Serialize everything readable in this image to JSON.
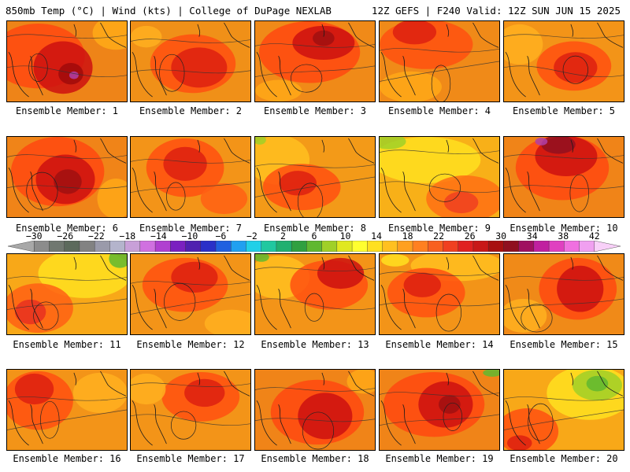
{
  "header": {
    "left": "850mb Temp (°C) | Wind (kts) | College of DuPage NEXLAB",
    "right": "12Z GEFS | F240 Valid: 12Z SUN JUN 15 2025"
  },
  "colorbar": {
    "labels": [
      "-30",
      "-26",
      "-22",
      "-18",
      "-14",
      "-10",
      "-6",
      "-2",
      "2",
      "6",
      "10",
      "14",
      "18",
      "22",
      "26",
      "30",
      "34",
      "38",
      "42"
    ],
    "colors": [
      "#a8a8a8",
      "#8c8c8c",
      "#707870",
      "#5c6a5c",
      "#828282",
      "#9a9aaa",
      "#b4b4cc",
      "#c8a0d8",
      "#d070e0",
      "#b040d0",
      "#7a20c0",
      "#5020b0",
      "#2a30c8",
      "#2060e0",
      "#20a0f0",
      "#20d0e8",
      "#20c8a0",
      "#20b070",
      "#30a040",
      "#60b830",
      "#a0d028",
      "#e0e820",
      "#ffff30",
      "#ffe020",
      "#ffc020",
      "#ffa020",
      "#ff8020",
      "#f86020",
      "#f04020",
      "#e02020",
      "#c81818",
      "#a81010",
      "#901020",
      "#a01060",
      "#c020a0",
      "#e040c0",
      "#f070e0",
      "#f0a0f0",
      "#f8d0f8"
    ]
  },
  "members": [
    {
      "caption": "Ensemble Member: 1",
      "base": "#ee8418",
      "blobs": [
        {
          "c": "#ff4810",
          "x": 40,
          "y": 45,
          "rx": 60,
          "ry": 42
        },
        {
          "c": "#cc1010",
          "x": 72,
          "y": 60,
          "rx": 38,
          "ry": 34
        },
        {
          "c": "#a00a0a",
          "x": 82,
          "y": 68,
          "rx": 16,
          "ry": 14
        },
        {
          "c": "#b040a8",
          "x": 86,
          "y": 70,
          "rx": 6,
          "ry": 5
        },
        {
          "c": "#ffaa18",
          "x": 140,
          "y": 15,
          "rx": 30,
          "ry": 22
        }
      ]
    },
    {
      "caption": "Ensemble Member: 2",
      "base": "#f09018",
      "blobs": [
        {
          "c": "#ff5010",
          "x": 80,
          "y": 55,
          "rx": 55,
          "ry": 38
        },
        {
          "c": "#dd2010",
          "x": 88,
          "y": 60,
          "rx": 36,
          "ry": 26
        },
        {
          "c": "#ffb020",
          "x": 20,
          "y": 20,
          "rx": 20,
          "ry": 14
        }
      ]
    },
    {
      "caption": "Ensemble Member: 3",
      "base": "#f08a18",
      "blobs": [
        {
          "c": "#ff4810",
          "x": 70,
          "y": 40,
          "rx": 65,
          "ry": 40
        },
        {
          "c": "#cc1010",
          "x": 88,
          "y": 28,
          "rx": 40,
          "ry": 22
        },
        {
          "c": "#a01010",
          "x": 88,
          "y": 22,
          "rx": 14,
          "ry": 10
        },
        {
          "c": "#ffa818",
          "x": 30,
          "y": 90,
          "rx": 30,
          "ry": 14
        }
      ]
    },
    {
      "caption": "Ensemble Member: 4",
      "base": "#f08a18",
      "blobs": [
        {
          "c": "#ff5010",
          "x": 60,
          "y": 30,
          "rx": 60,
          "ry": 32
        },
        {
          "c": "#dd2010",
          "x": 45,
          "y": 14,
          "rx": 28,
          "ry": 16
        },
        {
          "c": "#ffa818",
          "x": 40,
          "y": 85,
          "rx": 40,
          "ry": 20
        }
      ]
    },
    {
      "caption": "Ensemble Member: 5",
      "base": "#f39418",
      "blobs": [
        {
          "c": "#ff5010",
          "x": 90,
          "y": 58,
          "rx": 48,
          "ry": 32
        },
        {
          "c": "#dd2010",
          "x": 92,
          "y": 60,
          "rx": 28,
          "ry": 20
        },
        {
          "c": "#ffb020",
          "x": 20,
          "y": 30,
          "rx": 30,
          "ry": 26
        }
      ]
    },
    {
      "caption": "Ensemble Member: 6",
      "base": "#f08418",
      "blobs": [
        {
          "c": "#ff4810",
          "x": 65,
          "y": 45,
          "rx": 60,
          "ry": 45
        },
        {
          "c": "#cc1010",
          "x": 75,
          "y": 55,
          "rx": 38,
          "ry": 32
        },
        {
          "c": "#a01010",
          "x": 78,
          "y": 58,
          "rx": 18,
          "ry": 16
        },
        {
          "c": "#ffa818",
          "x": 140,
          "y": 80,
          "rx": 24,
          "ry": 26
        }
      ]
    },
    {
      "caption": "Ensemble Member: 7",
      "base": "#f39418",
      "blobs": [
        {
          "c": "#ff5010",
          "x": 70,
          "y": 40,
          "rx": 50,
          "ry": 38
        },
        {
          "c": "#dd2010",
          "x": 70,
          "y": 35,
          "rx": 28,
          "ry": 22
        },
        {
          "c": "#ff6014",
          "x": 120,
          "y": 80,
          "rx": 30,
          "ry": 20
        }
      ]
    },
    {
      "caption": "Ensemble Member: 8",
      "base": "#f39a18",
      "blobs": [
        {
          "c": "#ffc020",
          "x": 30,
          "y": 30,
          "rx": 40,
          "ry": 32
        },
        {
          "c": "#ff5010",
          "x": 60,
          "y": 65,
          "rx": 50,
          "ry": 30
        },
        {
          "c": "#dd2010",
          "x": 55,
          "y": 60,
          "rx": 24,
          "ry": 16
        },
        {
          "c": "#a0d028",
          "x": 6,
          "y": 4,
          "rx": 8,
          "ry": 6
        }
      ]
    },
    {
      "caption": "Ensemble Member: 9",
      "base": "#f8b018",
      "blobs": [
        {
          "c": "#ffe020",
          "x": 60,
          "y": 30,
          "rx": 70,
          "ry": 30
        },
        {
          "c": "#a0d028",
          "x": 12,
          "y": 6,
          "rx": 22,
          "ry": 10
        },
        {
          "c": "#ff7014",
          "x": 110,
          "y": 80,
          "rx": 50,
          "ry": 30
        },
        {
          "c": "#f04020",
          "x": 105,
          "y": 85,
          "rx": 22,
          "ry": 14
        }
      ]
    },
    {
      "caption": "Ensemble Member: 10",
      "base": "#f08418",
      "blobs": [
        {
          "c": "#ff4810",
          "x": 75,
          "y": 40,
          "rx": 60,
          "ry": 42
        },
        {
          "c": "#cc1010",
          "x": 80,
          "y": 25,
          "rx": 40,
          "ry": 26
        },
        {
          "c": "#901020",
          "x": 70,
          "y": 10,
          "rx": 22,
          "ry": 12
        },
        {
          "c": "#b040a8",
          "x": 48,
          "y": 6,
          "rx": 8,
          "ry": 5
        }
      ]
    },
    {
      "caption": "Ensemble Member: 11",
      "base": "#f8a818",
      "blobs": [
        {
          "c": "#ffe020",
          "x": 100,
          "y": 25,
          "rx": 60,
          "ry": 32
        },
        {
          "c": "#60b830",
          "x": 145,
          "y": 6,
          "rx": 14,
          "ry": 12
        },
        {
          "c": "#ff6014",
          "x": 40,
          "y": 70,
          "rx": 45,
          "ry": 32
        },
        {
          "c": "#e83020",
          "x": 30,
          "y": 75,
          "rx": 20,
          "ry": 16
        }
      ]
    },
    {
      "caption": "Ensemble Member: 12",
      "base": "#f39418",
      "blobs": [
        {
          "c": "#ff5010",
          "x": 70,
          "y": 40,
          "rx": 55,
          "ry": 35
        },
        {
          "c": "#dd2010",
          "x": 82,
          "y": 30,
          "rx": 30,
          "ry": 20
        },
        {
          "c": "#ffb020",
          "x": 130,
          "y": 90,
          "rx": 35,
          "ry": 18
        }
      ]
    },
    {
      "caption": "Ensemble Member: 13",
      "base": "#f39418",
      "blobs": [
        {
          "c": "#ffc020",
          "x": 30,
          "y": 30,
          "rx": 40,
          "ry": 28
        },
        {
          "c": "#ff5010",
          "x": 95,
          "y": 40,
          "rx": 50,
          "ry": 32
        },
        {
          "c": "#cc1010",
          "x": 110,
          "y": 25,
          "rx": 30,
          "ry": 20
        },
        {
          "c": "#60b830",
          "x": 8,
          "y": 4,
          "rx": 10,
          "ry": 6
        }
      ]
    },
    {
      "caption": "Ensemble Member: 14",
      "base": "#f39418",
      "blobs": [
        {
          "c": "#ffc020",
          "x": 100,
          "y": 15,
          "rx": 60,
          "ry": 20
        },
        {
          "c": "#ff5010",
          "x": 60,
          "y": 50,
          "rx": 50,
          "ry": 32
        },
        {
          "c": "#dd2010",
          "x": 55,
          "y": 40,
          "rx": 24,
          "ry": 16
        },
        {
          "c": "#ffe020",
          "x": 20,
          "y": 8,
          "rx": 18,
          "ry": 8
        }
      ]
    },
    {
      "caption": "Ensemble Member: 15",
      "base": "#f08a18",
      "blobs": [
        {
          "c": "#ff4810",
          "x": 95,
          "y": 45,
          "rx": 50,
          "ry": 40
        },
        {
          "c": "#cc1010",
          "x": 98,
          "y": 45,
          "rx": 30,
          "ry": 30
        },
        {
          "c": "#ffb020",
          "x": 25,
          "y": 80,
          "rx": 30,
          "ry": 22
        }
      ]
    },
    {
      "caption": "Ensemble Member: 16",
      "base": "#f39418",
      "blobs": [
        {
          "c": "#ff5010",
          "x": 40,
          "y": 40,
          "rx": 45,
          "ry": 38
        },
        {
          "c": "#dd2010",
          "x": 35,
          "y": 25,
          "rx": 25,
          "ry": 20
        },
        {
          "c": "#ffb020",
          "x": 120,
          "y": 30,
          "rx": 35,
          "ry": 26
        }
      ]
    },
    {
      "caption": "Ensemble Member: 17",
      "base": "#f39418",
      "blobs": [
        {
          "c": "#ff5010",
          "x": 90,
          "y": 35,
          "rx": 50,
          "ry": 32
        },
        {
          "c": "#dd2010",
          "x": 95,
          "y": 30,
          "rx": 26,
          "ry": 18
        },
        {
          "c": "#ffb020",
          "x": 20,
          "y": 25,
          "rx": 25,
          "ry": 20
        }
      ]
    },
    {
      "caption": "Ensemble Member: 18",
      "base": "#f08418",
      "blobs": [
        {
          "c": "#ff4810",
          "x": 80,
          "y": 55,
          "rx": 60,
          "ry": 42
        },
        {
          "c": "#cc1010",
          "x": 90,
          "y": 60,
          "rx": 35,
          "ry": 30
        },
        {
          "c": "#ffa818",
          "x": 140,
          "y": 15,
          "rx": 22,
          "ry": 16
        }
      ]
    },
    {
      "caption": "Ensemble Member: 19",
      "base": "#f08418",
      "blobs": [
        {
          "c": "#ff4810",
          "x": 70,
          "y": 45,
          "rx": 65,
          "ry": 42
        },
        {
          "c": "#cc1010",
          "x": 85,
          "y": 45,
          "rx": 35,
          "ry": 30
        },
        {
          "c": "#a01010",
          "x": 90,
          "y": 45,
          "rx": 14,
          "ry": 12
        },
        {
          "c": "#60b830",
          "x": 145,
          "y": 4,
          "rx": 12,
          "ry": 5
        }
      ]
    },
    {
      "caption": "Ensemble Member: 20",
      "base": "#f8a818",
      "blobs": [
        {
          "c": "#ffe020",
          "x": 110,
          "y": 30,
          "rx": 55,
          "ry": 35
        },
        {
          "c": "#a0d028",
          "x": 120,
          "y": 20,
          "rx": 32,
          "ry": 20
        },
        {
          "c": "#60b830",
          "x": 120,
          "y": 18,
          "rx": 14,
          "ry": 10
        },
        {
          "c": "#ff5010",
          "x": 30,
          "y": 80,
          "rx": 40,
          "ry": 30
        },
        {
          "c": "#dd2010",
          "x": 20,
          "y": 95,
          "rx": 16,
          "ry": 10
        }
      ]
    }
  ]
}
